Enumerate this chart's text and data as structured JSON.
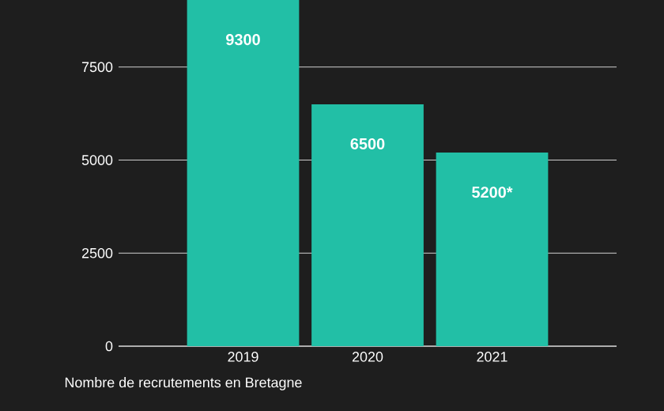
{
  "chart_data": {
    "type": "bar",
    "xlabel": "Nombre de recrutements en Bretagne",
    "categories": [
      "2019",
      "2020",
      "2021"
    ],
    "values": [
      9300,
      6500,
      5200
    ],
    "value_labels": [
      "9300",
      "6500",
      "5200*"
    ],
    "color": "#22bfa6",
    "ylim": [
      0,
      9300
    ],
    "yticks": [
      0,
      2500,
      5000,
      7500
    ],
    "grid": "y"
  }
}
